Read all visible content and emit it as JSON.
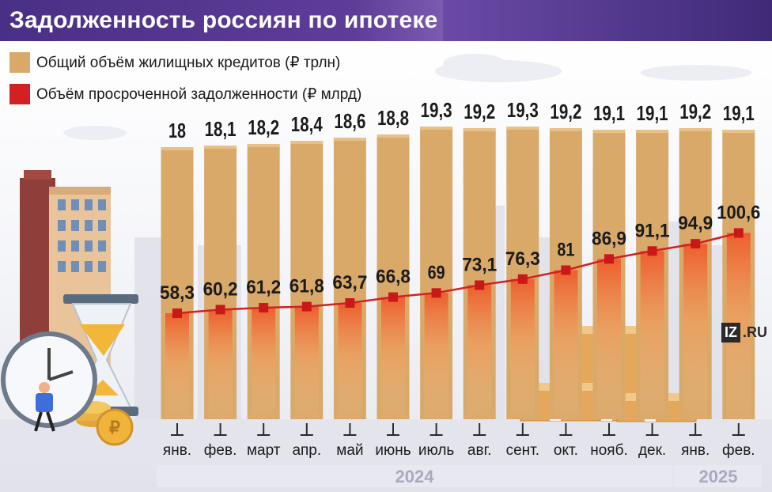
{
  "title": "Задолженность россиян по ипотеке",
  "legend": [
    {
      "label": "Общий объём жилищных кредитов (₽ трлн)",
      "color": "#d9a96a"
    },
    {
      "label": "Объём просроченной задолженности (₽ млрд)",
      "color": "#d42020"
    }
  ],
  "logo": {
    "mark": "IZ",
    "suffix": ".RU"
  },
  "chart_data": {
    "type": "bar",
    "categories": [
      "янв.",
      "фев.",
      "март",
      "апр.",
      "май",
      "июнь",
      "июль",
      "авг.",
      "сент.",
      "окт.",
      "нояб.",
      "дек.",
      "янв.",
      "фев."
    ],
    "years": [
      {
        "label": "2024",
        "from": 0,
        "to": 11
      },
      {
        "label": "2025",
        "from": 12,
        "to": 13
      }
    ],
    "series": [
      {
        "name": "Общий объём жилищных кредитов (₽ трлн)",
        "type": "bar",
        "labels": [
          "18",
          "18,1",
          "18,2",
          "18,4",
          "18,6",
          "18,8",
          "19,3",
          "19,2",
          "19,3",
          "19,2",
          "19,1",
          "19,1",
          "19,2",
          "19,1"
        ],
        "values": [
          18,
          18.1,
          18.2,
          18.4,
          18.6,
          18.8,
          19.3,
          19.2,
          19.3,
          19.2,
          19.1,
          19.1,
          19.2,
          19.1
        ]
      },
      {
        "name": "Объём просроченной задолженности (₽ млрд)",
        "type": "line",
        "labels": [
          "58,3",
          "60,2",
          "61,2",
          "61,8",
          "63,7",
          "66,8",
          "69",
          "73,1",
          "76,3",
          "81",
          "86,9",
          "91,1",
          "94,9",
          "100,6"
        ],
        "values": [
          58.3,
          60.2,
          61.2,
          61.8,
          63.7,
          66.8,
          69,
          73.1,
          76.3,
          81,
          86.9,
          91.1,
          94.9,
          100.6
        ]
      }
    ],
    "colors": {
      "bar": "#d9a96a",
      "bar_top": "#e8c08a",
      "line": "#d42020",
      "marker": "#c81818",
      "glow": "#f0703a"
    }
  }
}
